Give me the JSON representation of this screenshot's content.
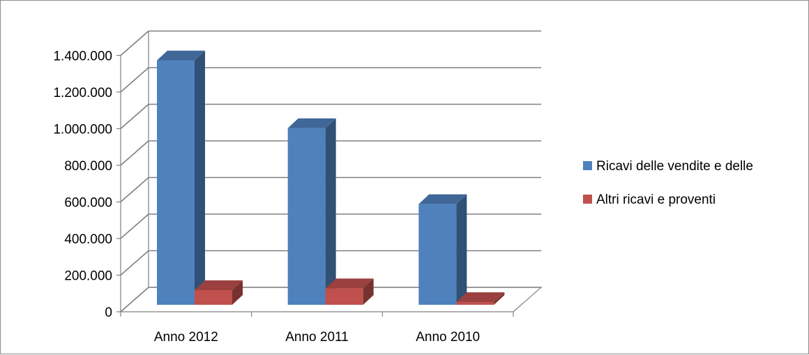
{
  "chart_data": {
    "type": "bar",
    "style": "3d-column",
    "categories": [
      "Anno 2012",
      "Anno 2011",
      "Anno 2010"
    ],
    "series": [
      {
        "name": "Ricavi delle vendite e delle",
        "color": "#4f81bd",
        "values": [
          1335000,
          965000,
          550000
        ]
      },
      {
        "name": "Altri ricavi e proventi",
        "color": "#c0504d",
        "values": [
          80000,
          90000,
          15000
        ]
      }
    ],
    "ylim": [
      0,
      1400000
    ],
    "yticks": [
      "0",
      "200.000",
      "400.000",
      "600.000",
      "800.000",
      "1.000.000",
      "1.200.000",
      "1.400.000"
    ],
    "ytick_values": [
      0,
      200000,
      400000,
      600000,
      800000,
      1000000,
      1200000,
      1400000
    ],
    "grid": true,
    "legend_position": "right"
  }
}
